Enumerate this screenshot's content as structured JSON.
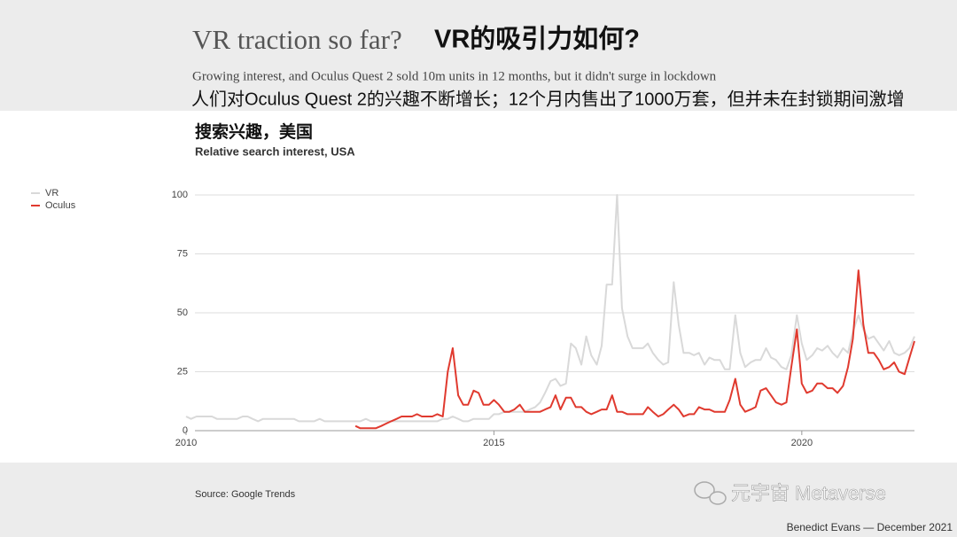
{
  "slide": {
    "title": "VR traction so far?",
    "title_zh": "VR的吸引力如何?",
    "subtitle": "Growing interest, and Oculus Quest 2 sold 10m units in 12 months, but it didn't surge in lockdown",
    "subtitle_zh": "人们对Oculus Quest 2的兴趣不断增长；12个月内售出了1000万套，但并未在封锁期间激增",
    "source": "Source: Google Trends",
    "watermark": "元宇宙 Metaverse",
    "footer": "Benedict Evans — December 2021"
  },
  "chart_data": {
    "type": "line",
    "title": "搜索兴趣，美国",
    "subtitle": "Relative search interest, USA",
    "x": [
      2010,
      2010.08,
      2010.17,
      2010.25,
      2010.33,
      2010.42,
      2010.5,
      2010.58,
      2010.67,
      2010.75,
      2010.83,
      2010.92,
      2011,
      2011.08,
      2011.17,
      2011.25,
      2011.33,
      2011.42,
      2011.5,
      2011.58,
      2011.67,
      2011.75,
      2011.83,
      2011.92,
      2012,
      2012.08,
      2012.17,
      2012.25,
      2012.33,
      2012.42,
      2012.5,
      2012.58,
      2012.67,
      2012.75,
      2012.83,
      2012.92,
      2013,
      2013.08,
      2013.17,
      2013.25,
      2013.33,
      2013.42,
      2013.5,
      2013.58,
      2013.67,
      2013.75,
      2013.83,
      2013.92,
      2014,
      2014.08,
      2014.17,
      2014.25,
      2014.33,
      2014.42,
      2014.5,
      2014.58,
      2014.67,
      2014.75,
      2014.83,
      2014.92,
      2015,
      2015.08,
      2015.17,
      2015.25,
      2015.33,
      2015.42,
      2015.5,
      2015.58,
      2015.67,
      2015.75,
      2015.83,
      2015.92,
      2016,
      2016.08,
      2016.17,
      2016.25,
      2016.33,
      2016.42,
      2016.5,
      2016.58,
      2016.67,
      2016.75,
      2016.83,
      2016.92,
      2017,
      2017.08,
      2017.17,
      2017.25,
      2017.33,
      2017.42,
      2017.5,
      2017.58,
      2017.67,
      2017.75,
      2017.83,
      2017.92,
      2018,
      2018.08,
      2018.17,
      2018.25,
      2018.33,
      2018.42,
      2018.5,
      2018.58,
      2018.67,
      2018.75,
      2018.83,
      2018.92,
      2019,
      2019.08,
      2019.17,
      2019.25,
      2019.33,
      2019.42,
      2019.5,
      2019.58,
      2019.67,
      2019.75,
      2019.83,
      2019.92,
      2020,
      2020.08,
      2020.17,
      2020.25,
      2020.33,
      2020.42,
      2020.5,
      2020.58,
      2020.67,
      2020.75,
      2020.83,
      2020.92,
      2021,
      2021.08,
      2021.17,
      2021.25,
      2021.33,
      2021.42,
      2021.5,
      2021.58,
      2021.67,
      2021.75,
      2021.83
    ],
    "series": [
      {
        "name": "VR",
        "color": "#d9d9d9",
        "values": [
          6,
          5,
          6,
          6,
          6,
          6,
          5,
          5,
          5,
          5,
          5,
          6,
          6,
          5,
          4,
          5,
          5,
          5,
          5,
          5,
          5,
          5,
          4,
          4,
          4,
          4,
          5,
          4,
          4,
          4,
          4,
          4,
          4,
          4,
          4,
          5,
          4,
          4,
          4,
          4,
          4,
          4,
          4,
          4,
          4,
          4,
          4,
          4,
          4,
          4,
          5,
          5,
          6,
          5,
          4,
          4,
          5,
          5,
          5,
          5,
          7,
          7,
          8,
          8,
          8,
          8,
          8,
          9,
          10,
          12,
          16,
          21,
          22,
          19,
          20,
          37,
          35,
          28,
          40,
          32,
          28,
          36,
          62,
          62,
          100,
          52,
          40,
          35,
          35,
          35,
          37,
          33,
          30,
          28,
          29,
          63,
          45,
          33,
          33,
          32,
          33,
          28,
          31,
          30,
          30,
          26,
          26,
          49,
          33,
          27,
          29,
          30,
          30,
          35,
          31,
          30,
          27,
          26,
          32,
          49,
          37,
          30,
          32,
          35,
          34,
          36,
          33,
          31,
          35,
          33,
          42,
          49,
          43,
          39,
          40,
          37,
          34,
          38,
          33,
          32,
          33,
          35,
          40
        ]
      },
      {
        "name": "Oculus",
        "color": "#e03a2f",
        "values": [
          null,
          null,
          null,
          null,
          null,
          null,
          null,
          null,
          null,
          null,
          null,
          null,
          null,
          null,
          null,
          null,
          null,
          null,
          null,
          null,
          null,
          null,
          null,
          null,
          null,
          null,
          null,
          null,
          null,
          null,
          null,
          null,
          null,
          2,
          1,
          1,
          1,
          1,
          2,
          3,
          4,
          5,
          6,
          6,
          6,
          7,
          6,
          6,
          6,
          7,
          6,
          25,
          35,
          15,
          11,
          11,
          17,
          16,
          11,
          11,
          13,
          11,
          8,
          8,
          9,
          11,
          8,
          8,
          8,
          8,
          9,
          10,
          15,
          9,
          14,
          14,
          10,
          10,
          8,
          7,
          8,
          9,
          9,
          15,
          8,
          8,
          7,
          7,
          7,
          7,
          10,
          8,
          6,
          7,
          9,
          11,
          9,
          6,
          7,
          7,
          10,
          9,
          9,
          8,
          8,
          8,
          13,
          22,
          11,
          8,
          9,
          10,
          17,
          18,
          15,
          12,
          11,
          12,
          27,
          43,
          20,
          16,
          17,
          20,
          20,
          18,
          18,
          16,
          19,
          27,
          39,
          68,
          45,
          33,
          33,
          30,
          26,
          27,
          29,
          25,
          24,
          31,
          38
        ]
      }
    ],
    "xlim": [
      2010,
      2021.83
    ],
    "xticks": [
      2010,
      2015,
      2020
    ],
    "ylim": [
      0,
      100
    ],
    "yticks": [
      0,
      25,
      50,
      75,
      100
    ],
    "grid": true,
    "legend": "left"
  }
}
